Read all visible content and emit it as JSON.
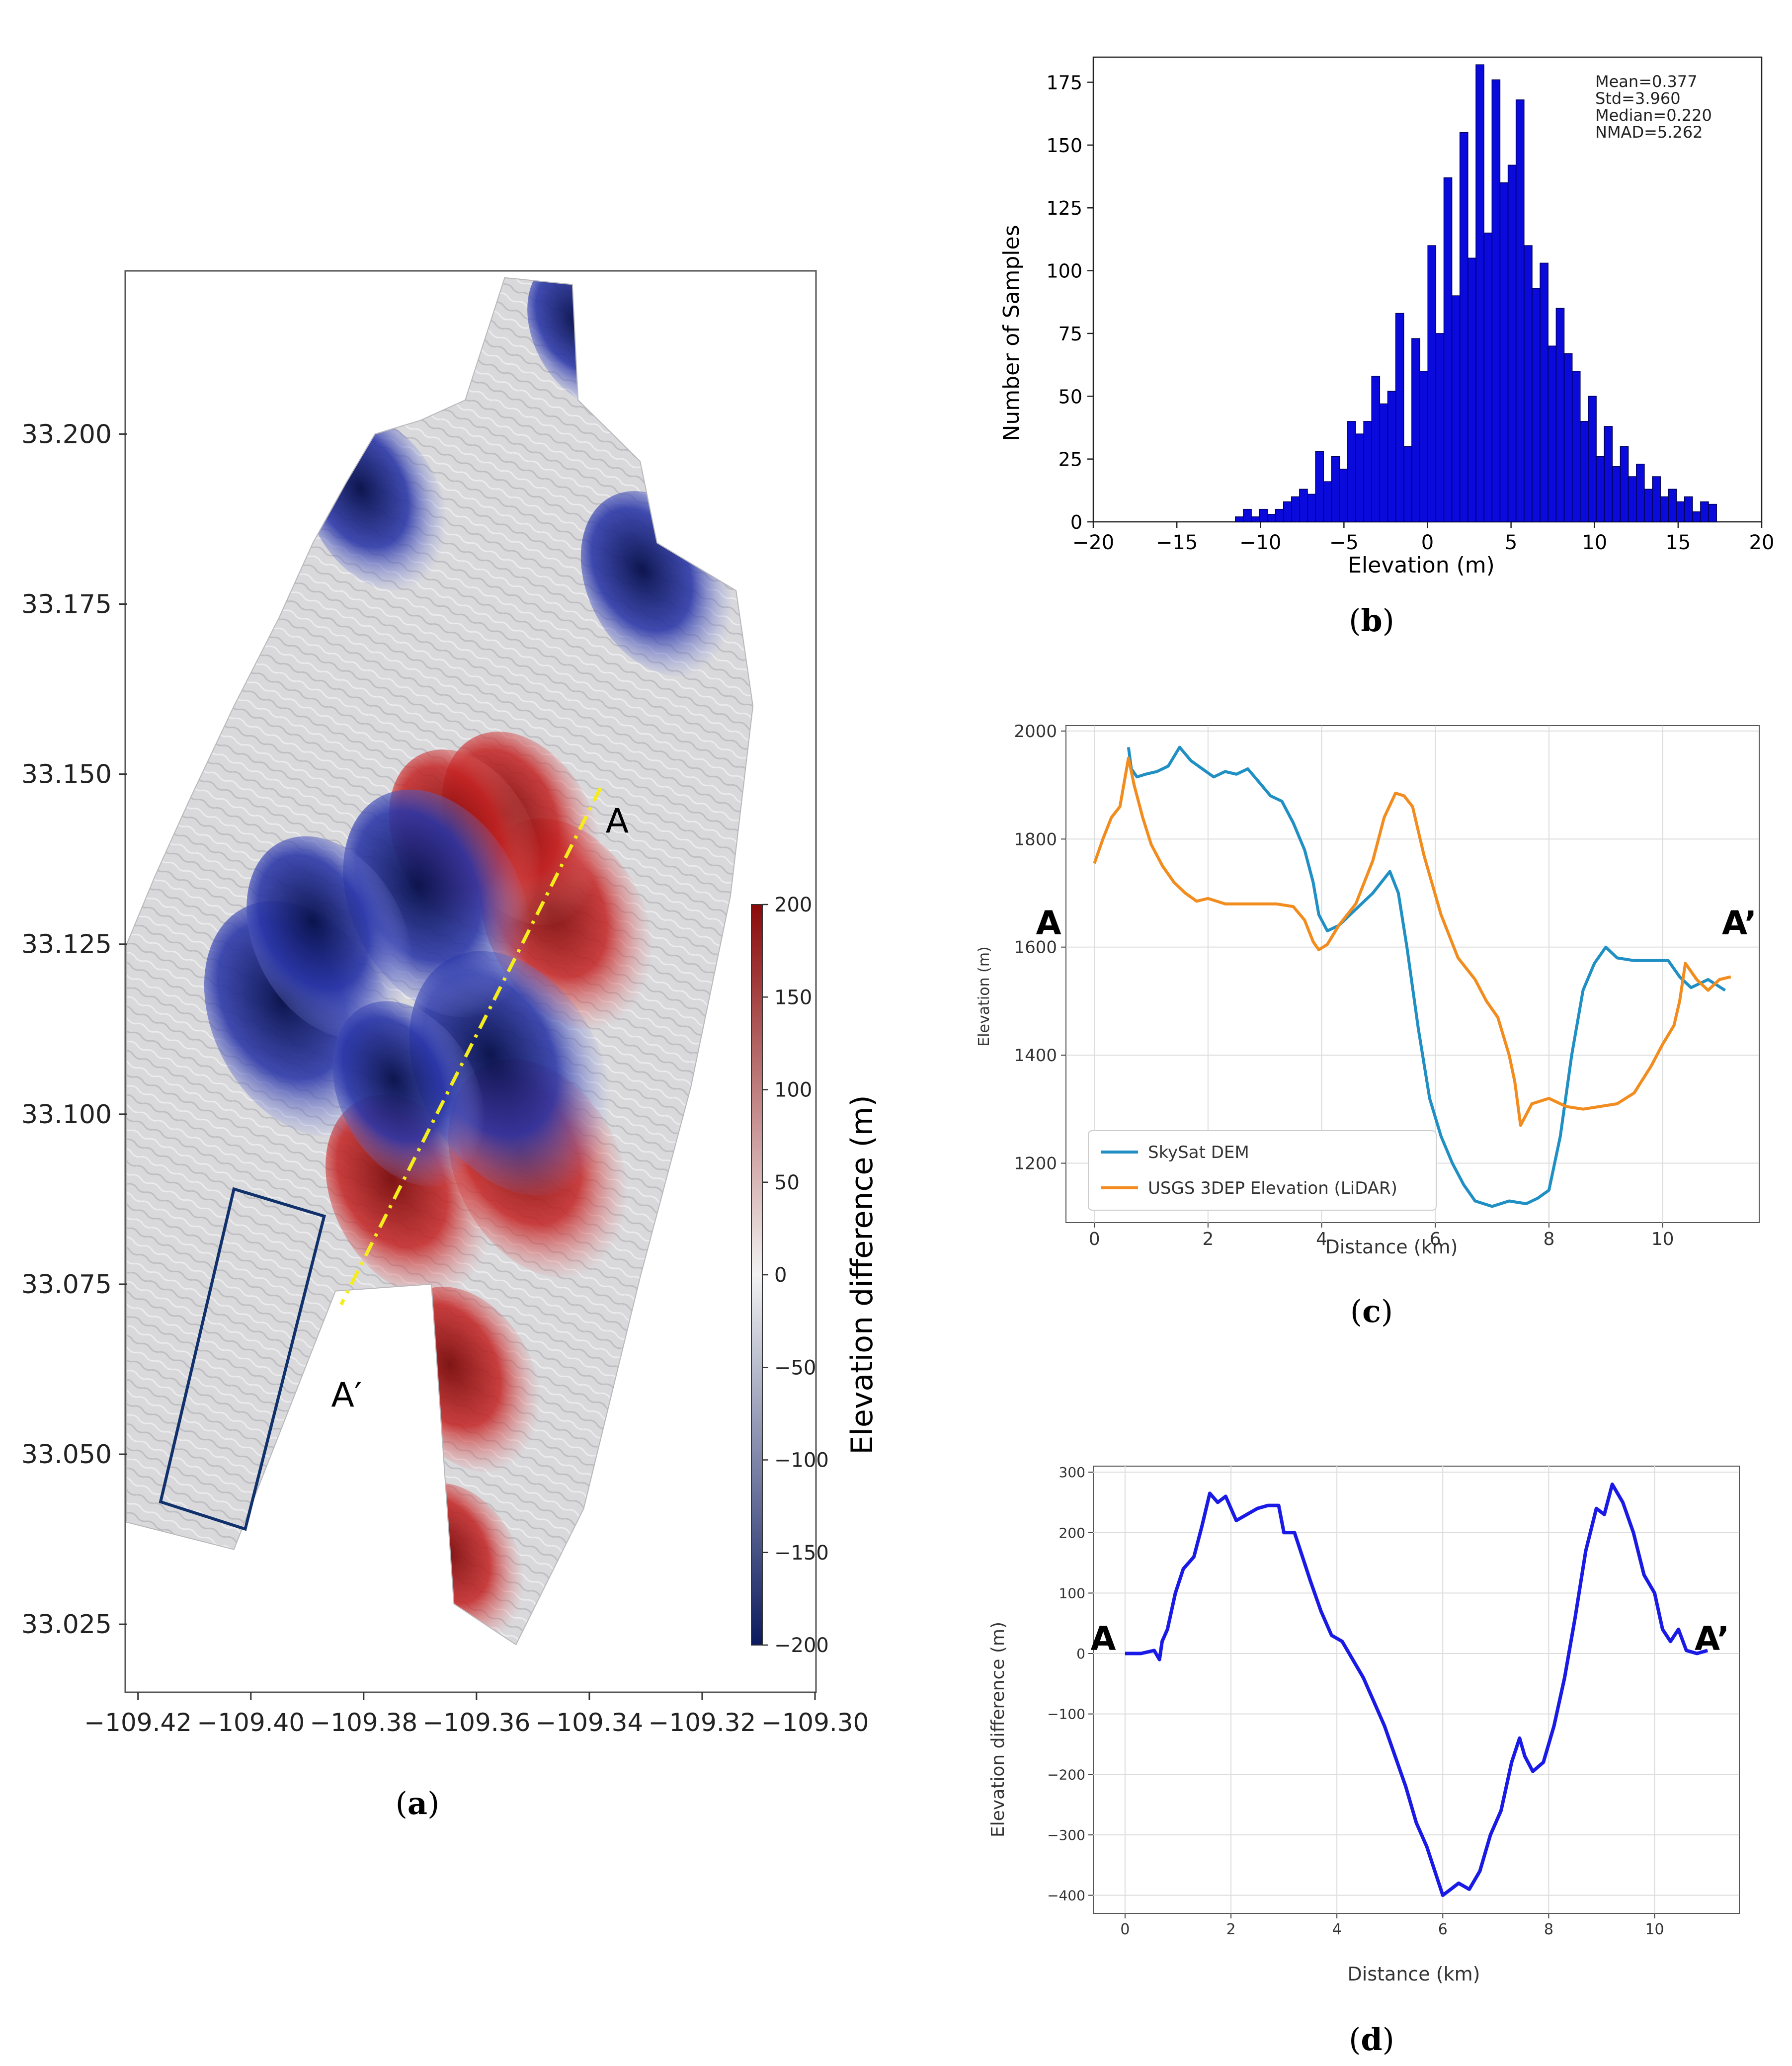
{
  "panels": {
    "a": {
      "label_open": "(",
      "label_letter": "a",
      "label_close": ")"
    },
    "b": {
      "label_open": "(",
      "label_letter": "b",
      "label_close": ")"
    },
    "c": {
      "label_open": "(",
      "label_letter": "c",
      "label_close": ")"
    },
    "d": {
      "label_open": "(",
      "label_letter": "d",
      "label_close": ")"
    }
  },
  "colors": {
    "diverging_low": "#0b1a5e",
    "diverging_mid": "#f2f2f2",
    "diverging_high": "#8b0a0a",
    "skysat": "#1f8fc4",
    "usgs": "#f28c1e",
    "difference": "#1a1ae6",
    "histogram_bar": "#0a0adc",
    "profile_line": "#f5ec1b",
    "reference_box": "#10316b"
  },
  "chart_data": [
    {
      "type": "heatmap",
      "panel": "a",
      "title": "",
      "xlabel": "",
      "ylabel": "",
      "xlim": [
        -109.422,
        -109.3
      ],
      "ylim": [
        33.015,
        33.224
      ],
      "x_ticks": [
        -109.42,
        -109.4,
        -109.38,
        -109.36,
        -109.34,
        -109.32,
        -109.3
      ],
      "x_tick_labels": [
        "−109.42",
        "−109.40",
        "−109.38",
        "−109.36",
        "−109.34",
        "−109.32",
        "−109.30"
      ],
      "y_ticks": [
        33.025,
        33.05,
        33.075,
        33.1,
        33.125,
        33.15,
        33.175,
        33.2
      ],
      "y_tick_labels": [
        "33.025",
        "33.050",
        "33.075",
        "33.100",
        "33.125",
        "33.150",
        "33.175",
        "33.200"
      ],
      "colorbar": {
        "label": "Elevation difference (m)",
        "range": [
          -200,
          200
        ],
        "ticks": [
          200,
          150,
          100,
          50,
          0,
          -50,
          -100,
          -150,
          -200
        ],
        "tick_labels": [
          "200",
          "150",
          "100",
          "50",
          "0",
          "−50",
          "−100",
          "−150",
          "−200"
        ]
      },
      "profile": {
        "start_label": "A",
        "end_label": "A′",
        "start": [
          -109.338,
          33.148
        ],
        "end": [
          -109.384,
          33.072
        ]
      },
      "reference_box": [
        [
          -109.416,
          33.043
        ],
        [
          -109.401,
          33.039
        ],
        [
          -109.387,
          33.085
        ],
        [
          -109.403,
          33.089
        ]
      ],
      "anomalies": [
        {
          "sign": "pos",
          "lon": -109.344,
          "lat": 33.128,
          "value": 150
        },
        {
          "sign": "pos",
          "lon": -109.352,
          "lat": 33.142,
          "value": 130
        },
        {
          "sign": "pos",
          "lon": -109.362,
          "lat": 33.14,
          "value": 120
        },
        {
          "sign": "pos",
          "lon": -109.372,
          "lat": 33.088,
          "value": 140
        },
        {
          "sign": "pos",
          "lon": -109.349,
          "lat": 33.092,
          "value": 160
        },
        {
          "sign": "pos",
          "lon": -109.362,
          "lat": 33.061,
          "value": 120
        },
        {
          "sign": "pos",
          "lon": -109.363,
          "lat": 33.034,
          "value": 90
        },
        {
          "sign": "neg",
          "lon": -109.354,
          "lat": 33.106,
          "value": -190
        },
        {
          "sign": "neg",
          "lon": -109.367,
          "lat": 33.131,
          "value": -170
        },
        {
          "sign": "neg",
          "lon": -109.391,
          "lat": 33.114,
          "value": -180
        },
        {
          "sign": "neg",
          "lon": -109.386,
          "lat": 33.126,
          "value": -140
        },
        {
          "sign": "neg",
          "lon": -109.372,
          "lat": 33.103,
          "value": -120
        },
        {
          "sign": "neg",
          "lon": -109.378,
          "lat": 33.19,
          "value": -110
        },
        {
          "sign": "neg",
          "lon": -109.328,
          "lat": 33.178,
          "value": -120
        },
        {
          "sign": "neg",
          "lon": -109.34,
          "lat": 33.215,
          "value": -80
        }
      ]
    },
    {
      "type": "bar",
      "panel": "b",
      "title": "",
      "xlabel": "Elevation (m)",
      "ylabel": "Number of Samples",
      "xlim": [
        -20,
        20
      ],
      "ylim": [
        0,
        185
      ],
      "x_ticks": [
        -20,
        -15,
        -10,
        -5,
        0,
        5,
        10,
        15,
        20
      ],
      "x_tick_labels": [
        "−20",
        "−15",
        "−10",
        "−5",
        "0",
        "5",
        "10",
        "15",
        "20"
      ],
      "y_ticks": [
        0,
        25,
        50,
        75,
        100,
        125,
        150,
        175
      ],
      "y_tick_labels": [
        "0",
        "25",
        "50",
        "75",
        "100",
        "125",
        "150",
        "175"
      ],
      "annotations": [
        "Mean=0.377",
        "Std=3.960",
        "Median=0.220",
        "NMAD=5.262"
      ],
      "bin_start": -11.5,
      "bin_width": 0.48,
      "values": [
        2,
        5,
        2,
        5,
        3,
        5,
        8,
        10,
        13,
        11,
        28,
        16,
        26,
        21,
        40,
        35,
        40,
        58,
        47,
        52,
        83,
        30,
        73,
        60,
        110,
        75,
        137,
        90,
        155,
        105,
        182,
        115,
        176,
        135,
        142,
        168,
        110,
        93,
        103,
        70,
        85,
        67,
        60,
        40,
        50,
        26,
        38,
        22,
        30,
        18,
        23,
        13,
        18,
        10,
        13,
        8,
        10,
        4,
        8,
        7
      ]
    },
    {
      "type": "line",
      "panel": "c",
      "title": "",
      "xlabel": "Distance (km)",
      "ylabel": "Elevation (m)",
      "xlim": [
        -0.5,
        11.7
      ],
      "ylim": [
        1090,
        2010
      ],
      "x_ticks": [
        0,
        2,
        4,
        6,
        8,
        10
      ],
      "x_tick_labels": [
        "0",
        "2",
        "4",
        "6",
        "8",
        "10"
      ],
      "y_ticks": [
        1200,
        1400,
        1600,
        1800,
        2000
      ],
      "y_tick_labels": [
        "1200",
        "1400",
        "1600",
        "1800",
        "2000"
      ],
      "grid": true,
      "legend_position": "bottom-left",
      "start_label": "A",
      "end_label": "A’",
      "series": [
        {
          "name": "SkySat DEM",
          "x": [
            0.6,
            0.65,
            0.75,
            0.9,
            1.1,
            1.3,
            1.5,
            1.7,
            1.9,
            2.1,
            2.3,
            2.5,
            2.7,
            2.9,
            3.1,
            3.3,
            3.5,
            3.7,
            3.85,
            3.95,
            4.1,
            4.3,
            4.6,
            4.9,
            5.2,
            5.35,
            5.5,
            5.7,
            5.9,
            6.1,
            6.3,
            6.5,
            6.7,
            7.0,
            7.3,
            7.6,
            7.8,
            8.0,
            8.2,
            8.4,
            8.6,
            8.8,
            9.0,
            9.2,
            9.5,
            9.8,
            10.1,
            10.3,
            10.5,
            10.8,
            11.1
          ],
          "values": [
            1970,
            1930,
            1915,
            1920,
            1925,
            1935,
            1970,
            1945,
            1930,
            1915,
            1925,
            1920,
            1930,
            1905,
            1880,
            1870,
            1830,
            1780,
            1720,
            1660,
            1630,
            1640,
            1670,
            1700,
            1740,
            1700,
            1600,
            1450,
            1320,
            1250,
            1200,
            1160,
            1130,
            1120,
            1130,
            1125,
            1135,
            1150,
            1250,
            1400,
            1520,
            1570,
            1600,
            1580,
            1575,
            1575,
            1575,
            1545,
            1525,
            1540,
            1520
          ]
        },
        {
          "name": "USGS 3DEP Elevation (LiDAR)",
          "x": [
            0.0,
            0.15,
            0.3,
            0.45,
            0.6,
            0.7,
            0.85,
            1.0,
            1.2,
            1.4,
            1.6,
            1.8,
            2.0,
            2.3,
            2.6,
            2.9,
            3.2,
            3.5,
            3.7,
            3.85,
            3.95,
            4.1,
            4.3,
            4.6,
            4.9,
            5.1,
            5.3,
            5.45,
            5.6,
            5.8,
            6.1,
            6.4,
            6.7,
            6.9,
            7.1,
            7.3,
            7.4,
            7.5,
            7.7,
            8.0,
            8.3,
            8.6,
            8.9,
            9.2,
            9.5,
            9.8,
            10.0,
            10.2,
            10.3,
            10.4,
            10.6,
            10.8,
            11.0,
            11.2
          ],
          "values": [
            1755,
            1800,
            1840,
            1860,
            1950,
            1900,
            1840,
            1790,
            1750,
            1720,
            1700,
            1685,
            1690,
            1680,
            1680,
            1680,
            1680,
            1675,
            1650,
            1610,
            1595,
            1605,
            1640,
            1680,
            1760,
            1840,
            1885,
            1880,
            1860,
            1770,
            1660,
            1580,
            1540,
            1500,
            1470,
            1400,
            1350,
            1270,
            1310,
            1320,
            1305,
            1300,
            1305,
            1310,
            1330,
            1380,
            1420,
            1455,
            1500,
            1570,
            1540,
            1520,
            1540,
            1545
          ]
        }
      ]
    },
    {
      "type": "line",
      "panel": "d",
      "title": "",
      "xlabel": "Distance (km)",
      "ylabel": "Elevation difference (m)",
      "xlim": [
        -0.6,
        11.6
      ],
      "ylim": [
        -430,
        310
      ],
      "x_ticks": [
        0,
        2,
        4,
        6,
        8,
        10
      ],
      "x_tick_labels": [
        "0",
        "2",
        "4",
        "6",
        "8",
        "10"
      ],
      "y_ticks": [
        -400,
        -300,
        -200,
        -100,
        0,
        100,
        200,
        300
      ],
      "y_tick_labels": [
        "−400",
        "−300",
        "−200",
        "−100",
        "0",
        "100",
        "200",
        "300"
      ],
      "grid": true,
      "start_label": "A",
      "end_label": "A’",
      "series": [
        {
          "name": "",
          "x": [
            0.0,
            0.3,
            0.55,
            0.65,
            0.7,
            0.8,
            0.95,
            1.1,
            1.3,
            1.45,
            1.6,
            1.75,
            1.9,
            2.1,
            2.3,
            2.5,
            2.7,
            2.9,
            3.0,
            3.2,
            3.35,
            3.5,
            3.7,
            3.9,
            4.1,
            4.3,
            4.5,
            4.7,
            4.9,
            5.1,
            5.3,
            5.5,
            5.7,
            5.85,
            6.0,
            6.15,
            6.3,
            6.5,
            6.7,
            6.9,
            7.1,
            7.3,
            7.45,
            7.55,
            7.7,
            7.9,
            8.1,
            8.3,
            8.5,
            8.7,
            8.9,
            9.05,
            9.2,
            9.4,
            9.6,
            9.8,
            10.0,
            10.15,
            10.3,
            10.45,
            10.6,
            10.8,
            11.0
          ],
          "values": [
            0,
            0,
            5,
            -10,
            20,
            40,
            100,
            140,
            160,
            210,
            265,
            250,
            260,
            220,
            230,
            240,
            245,
            245,
            200,
            200,
            160,
            120,
            70,
            30,
            20,
            -10,
            -40,
            -80,
            -120,
            -170,
            -220,
            -280,
            -320,
            -360,
            -400,
            -390,
            -380,
            -390,
            -360,
            -300,
            -260,
            -180,
            -140,
            -170,
            -195,
            -180,
            -120,
            -40,
            60,
            170,
            240,
            230,
            280,
            250,
            200,
            130,
            100,
            40,
            20,
            40,
            5,
            0,
            5
          ]
        }
      ]
    }
  ]
}
